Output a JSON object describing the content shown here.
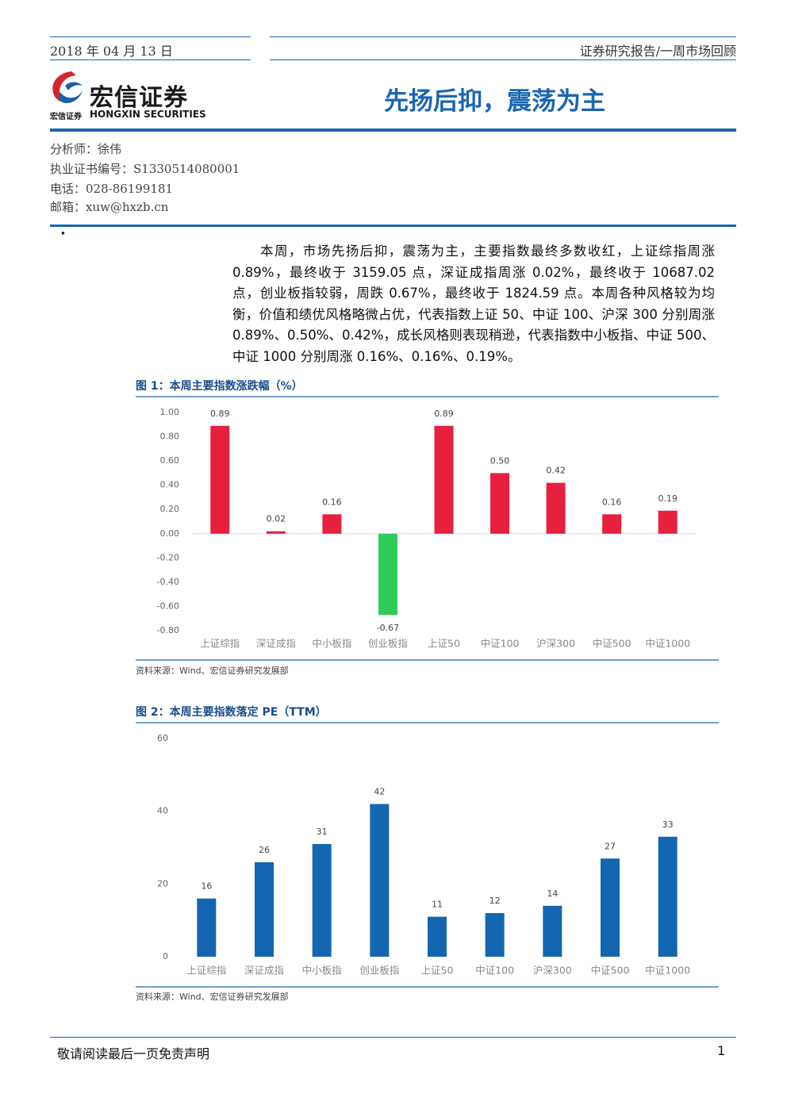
{
  "header": {
    "date": "2018 年 04 月 13 日",
    "report_type": "证券研究报告/一周市场回顾",
    "logo_cn": "宏信证券",
    "logo_small": "宏信证券",
    "logo_en": "HONGXIN SECURITIES",
    "title": "先扬后抑，震荡为主"
  },
  "analyst": [
    "分析师：徐伟",
    "执业证书编号：S1330514080001",
    "电话：028-86199181",
    "邮箱：xuw@hxzb.cn"
  ],
  "bullet": "·",
  "summary": "本周，市场先扬后抑，震荡为主，主要指数最终多数收红，上证综指周涨0.89%，最终收于 3159.05 点，深证成指周涨 0.02%，最终收于 10687.02 点，创业板指较弱，周跌 0.67%，最终收于 1824.59 点。本周各种风格较为均衡，价值和绩优风格略微占优，代表指数上证 50、中证 100、沪深 300 分别周涨0.89%、0.50%、0.42%，成长风格则表现稍逊，代表指数中小板指、中证 500、中证 1000 分别周涨 0.16%、0.16%、0.19%。",
  "chart_data": [
    {
      "type": "bar",
      "title": "图 1：本周主要指数涨跌幅（%）",
      "source": "资料来源：Wind、宏信证券研究发展部",
      "categories": [
        "上证综指",
        "深证成指",
        "中小板指",
        "创业板指",
        "上证50",
        "中证100",
        "沪深300",
        "中证500",
        "中证1000"
      ],
      "values": [
        0.89,
        0.02,
        0.16,
        -0.67,
        0.89,
        0.5,
        0.42,
        0.16,
        0.19
      ],
      "value_labels": [
        "0.89",
        "0.02",
        "0.16",
        "-0.67",
        "0.89",
        "0.50",
        "0.42",
        "0.16",
        "0.19"
      ],
      "color": "#e8203f",
      "negative_color": "#2ecb5a",
      "ylim": [
        -0.8,
        1.0
      ],
      "yticks": [
        {
          "value": -0.8,
          "label": "-0.80"
        },
        {
          "value": -0.6,
          "label": "-0.60"
        },
        {
          "value": -0.4,
          "label": "-0.40"
        },
        {
          "value": -0.2,
          "label": "-0.20"
        },
        {
          "value": 0,
          "label": "0.00"
        },
        {
          "value": 0.2,
          "label": "0.20"
        },
        {
          "value": 0.4,
          "label": "0.40"
        },
        {
          "value": 0.6,
          "label": "0.60"
        },
        {
          "value": 0.8,
          "label": "0.80"
        },
        {
          "value": 1.0,
          "label": "1.00"
        }
      ],
      "grid": false
    },
    {
      "type": "bar",
      "title": "图 2：本周主要指数落定 PE（TTM）",
      "source": "资料来源：Wind、宏信证券研究发展部",
      "categories": [
        "上证综指",
        "深证成指",
        "中小板指",
        "创业板指",
        "上证50",
        "中证100",
        "沪深300",
        "中证500",
        "中证1000"
      ],
      "values": [
        16,
        26,
        31,
        42,
        11,
        12,
        14,
        27,
        33
      ],
      "color": "#1566b0",
      "ylim": [
        0,
        60
      ],
      "yticks": [
        0,
        20,
        40,
        60
      ],
      "grid": false
    }
  ],
  "footer": {
    "notice": "敬请阅读最后一页免责声明",
    "page": "1"
  }
}
